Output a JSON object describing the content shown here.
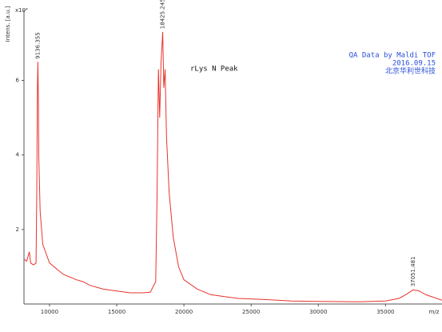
{
  "chart_data": {
    "type": "line",
    "y_label": "Intens. [a.u.]",
    "y_multiplier": "x10⁴",
    "x_label": "m/z",
    "annotations": [
      "rLys N Peak"
    ],
    "info_lines": [
      "QA Data by Maldi TOF",
      "2016.09.15",
      "北京华利世科技"
    ],
    "peak_labels": [
      9136.355,
      18425.245,
      37051.481
    ],
    "color": "#e8342c",
    "x": [
      8100,
      8300,
      8500,
      8600,
      8800,
      9000,
      9050,
      9100,
      9136,
      9170,
      9200,
      9300,
      9500,
      10000,
      11000,
      12000,
      12500,
      13000,
      14000,
      15000,
      16000,
      17000,
      17500,
      17900,
      18000,
      18100,
      18200,
      18300,
      18425,
      18500,
      18600,
      18700,
      18900,
      19200,
      19600,
      20000,
      21000,
      22000,
      24000,
      26000,
      28000,
      30000,
      33000,
      35000,
      36000,
      36500,
      37051,
      37500,
      38000,
      39200
    ],
    "values": [
      1.2,
      1.15,
      1.4,
      1.1,
      1.05,
      1.1,
      3.0,
      5.8,
      6.5,
      5.5,
      4.0,
      2.5,
      1.6,
      1.1,
      0.8,
      0.65,
      0.6,
      0.5,
      0.4,
      0.35,
      0.3,
      0.3,
      0.32,
      0.6,
      2.9,
      6.3,
      5.0,
      6.5,
      7.3,
      5.8,
      6.3,
      4.5,
      3.0,
      1.8,
      1.0,
      0.65,
      0.4,
      0.25,
      0.15,
      0.12,
      0.08,
      0.07,
      0.06,
      0.08,
      0.15,
      0.25,
      0.38,
      0.35,
      0.25,
      0.1
    ],
    "xlim": [
      8100,
      39200
    ],
    "ylim": [
      0,
      7.9
    ],
    "xticks": [
      10000,
      15000,
      20000,
      25000,
      30000,
      35000
    ],
    "yticks": [
      2,
      4,
      6
    ]
  }
}
